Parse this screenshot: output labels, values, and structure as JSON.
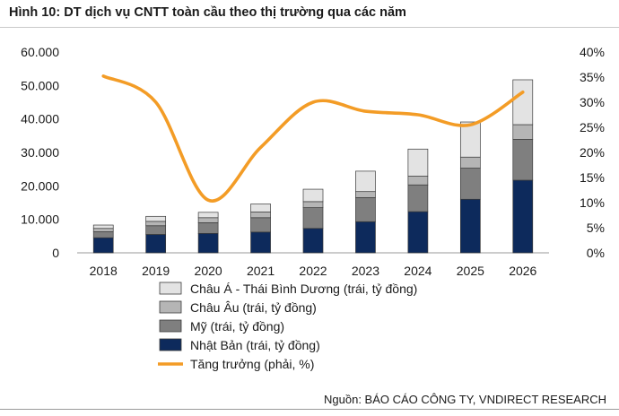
{
  "title": "Hình 10: DT dịch vụ CNTT toàn cầu theo thị trường qua các năm",
  "source": "Nguồn: BÁO CÁO CÔNG TY, VNDIRECT RESEARCH",
  "chart_data": {
    "type": "bar",
    "stacked": true,
    "categories": [
      "2018",
      "2019",
      "2020",
      "2021",
      "2022",
      "2023",
      "2024",
      "2025",
      "2026"
    ],
    "y_left": {
      "ylim": [
        0,
        60000
      ],
      "ticks": [
        0,
        10000,
        20000,
        30000,
        40000,
        50000,
        60000
      ],
      "tick_labels": [
        "0",
        "10.000",
        "20.000",
        "30.000",
        "40.000",
        "50.000",
        "60.000"
      ]
    },
    "y_right": {
      "ylim": [
        0,
        40
      ],
      "ticks": [
        0,
        5,
        10,
        15,
        20,
        25,
        30,
        35,
        40
      ],
      "tick_labels": [
        "0%",
        "5%",
        "10%",
        "15%",
        "20%",
        "25%",
        "30%",
        "35%",
        "40%"
      ]
    },
    "series": [
      {
        "name": "Nhật Bản (trái, tỷ đồng)",
        "type": "bar",
        "axis": "left",
        "color": "#0d2a5c",
        "values": [
          4500,
          5500,
          5800,
          6200,
          7300,
          9300,
          12300,
          16000,
          21700
        ]
      },
      {
        "name": "Mỹ (trái, tỷ đồng)",
        "type": "bar",
        "axis": "left",
        "color": "#7f7f7f",
        "values": [
          1800,
          2600,
          3200,
          4300,
          6200,
          7200,
          8000,
          9300,
          12200
        ]
      },
      {
        "name": "Châu Âu (trái, tỷ đồng)",
        "type": "bar",
        "axis": "left",
        "color": "#b5b5b5",
        "values": [
          1000,
          1300,
          1500,
          1700,
          1800,
          1800,
          2600,
          3300,
          4400
        ]
      },
      {
        "name": "Châu Á - Thái Bình Dương (trái, tỷ đồng)",
        "type": "bar",
        "axis": "left",
        "color": "#e3e3e3",
        "values": [
          1000,
          1500,
          1600,
          2400,
          3700,
          6100,
          8100,
          10500,
          13400
        ]
      },
      {
        "name": "Tăng trưởng (phải, %)",
        "type": "line",
        "axis": "right",
        "color": "#f39c26",
        "values": [
          35.2,
          30.0,
          10.5,
          21.0,
          30.0,
          28.2,
          27.5,
          25.5,
          32.0
        ]
      }
    ],
    "legend": {
      "placement": "bottom",
      "order": [
        "Châu Á - Thái Bình Dương (trái, tỷ đồng)",
        "Châu Âu (trái, tỷ đồng)",
        "Mỹ (trái, tỷ đồng)",
        "Nhật Bản (trái, tỷ đồng)",
        "Tăng trưởng (phải, %)"
      ]
    },
    "grid": false
  }
}
